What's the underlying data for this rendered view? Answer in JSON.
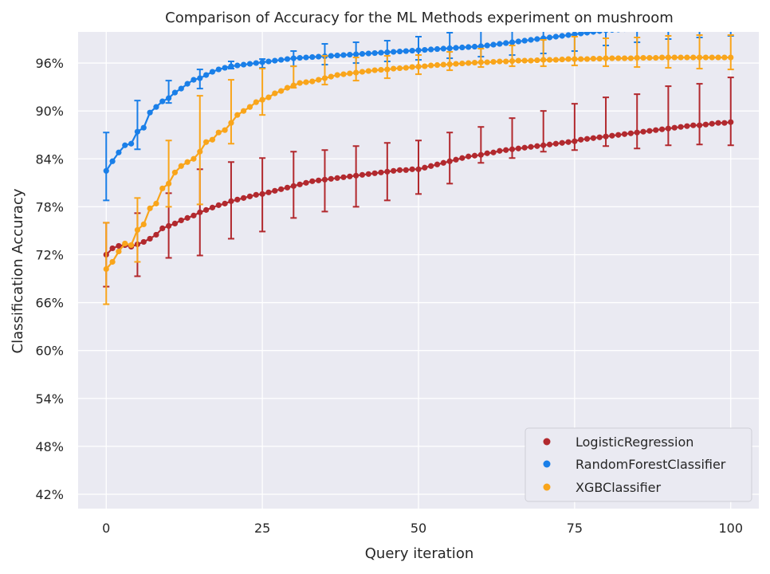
{
  "chart_data": {
    "type": "line",
    "title": "Comparison of Accuracy for the ML Methods experiment on mushroom",
    "xlabel": "Query iteration",
    "ylabel": "Classification Accuracy",
    "xlim": [
      -4.5,
      104.5
    ],
    "ylim": [
      40.2,
      99.9
    ],
    "xticks": [
      0,
      25,
      50,
      75,
      100
    ],
    "xtick_labels": [
      "0",
      "25",
      "50",
      "75",
      "100"
    ],
    "yticks": [
      42,
      48,
      54,
      60,
      66,
      72,
      78,
      84,
      90,
      96
    ],
    "ytick_labels": [
      "42%",
      "48%",
      "54%",
      "60%",
      "66%",
      "72%",
      "78%",
      "84%",
      "90%",
      "96%"
    ],
    "grid": true,
    "legend_position": "lower-right",
    "background": "#eaeaf2",
    "series": [
      {
        "name": "LogisticRegression",
        "color": "#b2292e",
        "x": [
          0,
          1,
          2,
          3,
          4,
          5,
          6,
          7,
          8,
          9,
          10,
          11,
          12,
          13,
          14,
          15,
          16,
          17,
          18,
          19,
          20,
          21,
          22,
          23,
          24,
          25,
          26,
          27,
          28,
          29,
          30,
          31,
          32,
          33,
          34,
          35,
          36,
          37,
          38,
          39,
          40,
          41,
          42,
          43,
          44,
          45,
          46,
          47,
          48,
          49,
          50,
          51,
          52,
          53,
          54,
          55,
          56,
          57,
          58,
          59,
          60,
          61,
          62,
          63,
          64,
          65,
          66,
          67,
          68,
          69,
          70,
          71,
          72,
          73,
          74,
          75,
          76,
          77,
          78,
          79,
          80,
          81,
          82,
          83,
          84,
          85,
          86,
          87,
          88,
          89,
          90,
          91,
          92,
          93,
          94,
          95,
          96,
          97,
          98,
          99,
          100
        ],
        "y": [
          72.0,
          72.8,
          73.1,
          73.2,
          73.0,
          73.3,
          73.6,
          74.0,
          74.5,
          75.3,
          75.6,
          75.9,
          76.3,
          76.6,
          76.9,
          77.3,
          77.6,
          77.9,
          78.2,
          78.4,
          78.7,
          78.9,
          79.1,
          79.3,
          79.5,
          79.6,
          79.8,
          80.0,
          80.2,
          80.4,
          80.6,
          80.8,
          81.0,
          81.2,
          81.3,
          81.4,
          81.5,
          81.6,
          81.7,
          81.8,
          81.9,
          82.0,
          82.1,
          82.2,
          82.3,
          82.4,
          82.5,
          82.6,
          82.6,
          82.7,
          82.7,
          82.9,
          83.1,
          83.3,
          83.5,
          83.7,
          83.9,
          84.1,
          84.3,
          84.4,
          84.5,
          84.7,
          84.8,
          85.0,
          85.1,
          85.2,
          85.3,
          85.4,
          85.5,
          85.6,
          85.7,
          85.8,
          85.9,
          86.0,
          86.1,
          86.2,
          86.4,
          86.5,
          86.6,
          86.7,
          86.8,
          86.9,
          87.0,
          87.1,
          87.2,
          87.3,
          87.4,
          87.5,
          87.6,
          87.7,
          87.8,
          87.9,
          88.0,
          88.1,
          88.2,
          88.2,
          88.3,
          88.4,
          88.5,
          88.5,
          88.6
        ],
        "err_x": [
          0,
          5,
          10,
          15,
          20,
          25,
          30,
          35,
          40,
          45,
          50,
          55,
          60,
          65,
          70,
          75,
          80,
          85,
          90,
          95,
          100
        ],
        "err_low": [
          68.0,
          69.3,
          71.6,
          71.9,
          74.0,
          74.9,
          76.6,
          77.4,
          78.0,
          78.8,
          79.6,
          80.9,
          83.5,
          84.1,
          84.9,
          85.1,
          85.6,
          85.3,
          85.7,
          85.8,
          85.7
        ],
        "err_high": [
          76.0,
          77.2,
          79.7,
          82.7,
          83.6,
          84.1,
          84.9,
          85.1,
          85.6,
          86.0,
          86.3,
          87.3,
          88.0,
          89.1,
          90.0,
          90.9,
          91.7,
          92.1,
          93.1,
          93.4,
          94.2
        ]
      },
      {
        "name": "RandomForestClassifier",
        "color": "#1a7fe8",
        "x": [
          0,
          1,
          2,
          3,
          4,
          5,
          6,
          7,
          8,
          9,
          10,
          11,
          12,
          13,
          14,
          15,
          16,
          17,
          18,
          19,
          20,
          21,
          22,
          23,
          24,
          25,
          26,
          27,
          28,
          29,
          30,
          31,
          32,
          33,
          34,
          35,
          36,
          37,
          38,
          39,
          40,
          41,
          42,
          43,
          44,
          45,
          46,
          47,
          48,
          49,
          50,
          51,
          52,
          53,
          54,
          55,
          56,
          57,
          58,
          59,
          60,
          61,
          62,
          63,
          64,
          65,
          66,
          67,
          68,
          69,
          70,
          71,
          72,
          73,
          74,
          75,
          76,
          77,
          78,
          79,
          80,
          81,
          82,
          83,
          84,
          85,
          86,
          87,
          88,
          89,
          90,
          91,
          92,
          93,
          94,
          95,
          96,
          97,
          98,
          99,
          100
        ],
        "y": [
          82.5,
          83.7,
          84.8,
          85.7,
          85.9,
          87.4,
          87.9,
          89.8,
          90.5,
          91.2,
          91.6,
          92.3,
          92.8,
          93.4,
          93.9,
          94.1,
          94.5,
          94.9,
          95.2,
          95.4,
          95.6,
          95.7,
          95.8,
          95.9,
          96.0,
          96.1,
          96.2,
          96.3,
          96.4,
          96.5,
          96.6,
          96.65,
          96.7,
          96.75,
          96.8,
          96.85,
          96.9,
          96.95,
          97.0,
          97.05,
          97.1,
          97.15,
          97.2,
          97.25,
          97.3,
          97.35,
          97.4,
          97.45,
          97.5,
          97.55,
          97.6,
          97.65,
          97.7,
          97.75,
          97.8,
          97.85,
          97.9,
          97.95,
          98.0,
          98.05,
          98.1,
          98.2,
          98.3,
          98.4,
          98.5,
          98.6,
          98.7,
          98.8,
          98.9,
          99.0,
          99.1,
          99.2,
          99.3,
          99.4,
          99.5,
          99.6,
          99.7,
          99.8,
          99.9,
          100.0,
          100.1,
          100.15,
          100.2,
          100.25,
          100.3,
          100.35,
          100.4,
          100.45,
          100.5,
          100.5,
          100.55,
          100.55,
          100.6,
          100.6,
          100.6,
          100.65,
          100.65,
          100.65,
          100.7,
          100.7,
          100.7
        ],
        "err_x": [
          0,
          5,
          10,
          15,
          20,
          25,
          30,
          35,
          40,
          45,
          50,
          55,
          60,
          65,
          70,
          75,
          80,
          85,
          90,
          95,
          100
        ],
        "err_low": [
          78.8,
          85.2,
          91.0,
          92.8,
          95.3,
          95.4,
          95.6,
          95.8,
          96.0,
          96.2,
          96.4,
          96.6,
          96.8,
          97.0,
          97.2,
          97.5,
          98.2,
          98.6,
          99.0,
          99.2,
          99.4
        ],
        "err_high": [
          87.3,
          91.3,
          93.8,
          95.2,
          96.2,
          96.5,
          97.5,
          98.4,
          98.6,
          98.8,
          99.3,
          99.8,
          100.8,
          101.5,
          102.0,
          102.5,
          102.8,
          103.0,
          103.1,
          103.2,
          103.3
        ]
      },
      {
        "name": "XGBClassifier",
        "color": "#f9a51b",
        "x": [
          0,
          1,
          2,
          3,
          4,
          5,
          6,
          7,
          8,
          9,
          10,
          11,
          12,
          13,
          14,
          15,
          16,
          17,
          18,
          19,
          20,
          21,
          22,
          23,
          24,
          25,
          26,
          27,
          28,
          29,
          30,
          31,
          32,
          33,
          34,
          35,
          36,
          37,
          38,
          39,
          40,
          41,
          42,
          43,
          44,
          45,
          46,
          47,
          48,
          49,
          50,
          51,
          52,
          53,
          54,
          55,
          56,
          57,
          58,
          59,
          60,
          61,
          62,
          63,
          64,
          65,
          66,
          67,
          68,
          69,
          70,
          71,
          72,
          73,
          74,
          75,
          76,
          77,
          78,
          79,
          80,
          81,
          82,
          83,
          84,
          85,
          86,
          87,
          88,
          89,
          90,
          91,
          92,
          93,
          94,
          95,
          96,
          97,
          98,
          99,
          100
        ],
        "y": [
          70.2,
          71.1,
          72.4,
          73.4,
          73.2,
          75.1,
          75.8,
          77.8,
          78.4,
          80.3,
          80.9,
          82.3,
          83.1,
          83.6,
          84.0,
          84.9,
          86.1,
          86.4,
          87.3,
          87.6,
          88.5,
          89.5,
          90.0,
          90.5,
          91.1,
          91.4,
          91.7,
          92.2,
          92.5,
          92.9,
          93.2,
          93.5,
          93.6,
          93.7,
          93.9,
          94.1,
          94.3,
          94.5,
          94.6,
          94.7,
          94.8,
          94.9,
          95.0,
          95.1,
          95.15,
          95.2,
          95.3,
          95.35,
          95.4,
          95.5,
          95.55,
          95.6,
          95.7,
          95.75,
          95.8,
          95.85,
          95.9,
          95.95,
          96.0,
          96.05,
          96.1,
          96.1,
          96.15,
          96.2,
          96.2,
          96.25,
          96.3,
          96.3,
          96.3,
          96.35,
          96.4,
          96.4,
          96.4,
          96.45,
          96.5,
          96.5,
          96.5,
          96.5,
          96.55,
          96.55,
          96.6,
          96.6,
          96.6,
          96.6,
          96.6,
          96.65,
          96.65,
          96.65,
          96.65,
          96.7,
          96.7,
          96.7,
          96.7,
          96.7,
          96.7,
          96.7,
          96.7,
          96.7,
          96.7,
          96.7,
          96.7
        ],
        "err_x": [
          0,
          5,
          10,
          15,
          20,
          25,
          30,
          35,
          40,
          45,
          50,
          55,
          60,
          65,
          70,
          75,
          80,
          85,
          90,
          95,
          100
        ],
        "err_low": [
          65.8,
          71.1,
          78.0,
          78.3,
          85.9,
          89.5,
          92.9,
          93.3,
          93.8,
          94.1,
          94.6,
          95.1,
          95.5,
          95.6,
          95.6,
          95.7,
          95.6,
          95.5,
          95.4,
          95.3,
          95.2
        ],
        "err_high": [
          76.0,
          79.1,
          86.3,
          91.9,
          93.9,
          95.3,
          95.6,
          96.9,
          96.7,
          96.9,
          97.0,
          97.4,
          97.8,
          98.2,
          98.9,
          99.3,
          99.1,
          99.2,
          99.4,
          99.5,
          99.5
        ]
      }
    ]
  }
}
